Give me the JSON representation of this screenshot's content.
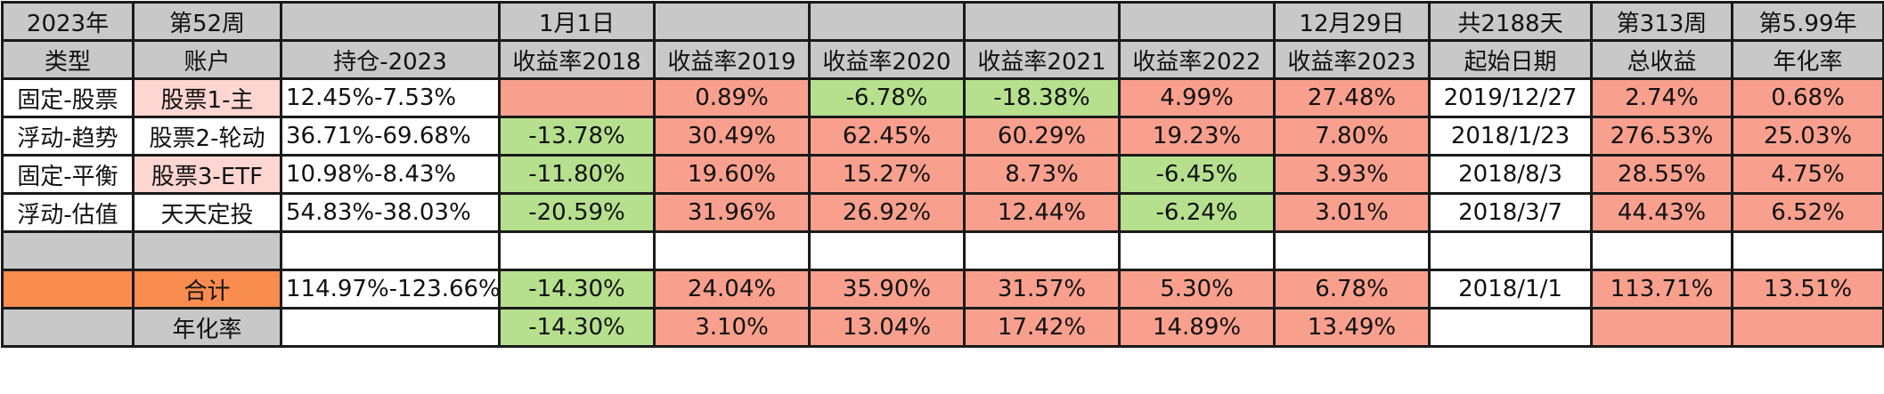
{
  "colors": {
    "header_gray": "#c8c8c8",
    "positive_red": "#f8a08d",
    "negative_green": "#b6e08e",
    "account_pink": "#fdd6d2",
    "total_orange": "#f98c4f",
    "blank_white": "#ffffff"
  },
  "header_row1": [
    "2023年",
    "第52周",
    "",
    "1月1日",
    "",
    "",
    "",
    "",
    "12月29日",
    "共2188天",
    "第313周",
    "第5.99年"
  ],
  "header_row2": [
    "类型",
    "账户",
    "持仓-2023",
    "收益率2018",
    "收益率2019",
    "收益率2020",
    "收益率2021",
    "收益率2022",
    "收益率2023",
    "起始日期",
    "总收益",
    "年化率"
  ],
  "rows": [
    {
      "cells": [
        {
          "text": "固定-股票",
          "style": "white"
        },
        {
          "text": "股票1-主",
          "style": "pink"
        },
        {
          "text": "12.45%-7.53%",
          "style": "white",
          "align": "left"
        },
        {
          "text": "",
          "style": "red"
        },
        {
          "text": "0.89%",
          "style": "red"
        },
        {
          "text": "-6.78%",
          "style": "green"
        },
        {
          "text": "-18.38%",
          "style": "green"
        },
        {
          "text": "4.99%",
          "style": "red"
        },
        {
          "text": "27.48%",
          "style": "red"
        },
        {
          "text": "2019/12/27",
          "style": "white"
        },
        {
          "text": "2.74%",
          "style": "red"
        },
        {
          "text": "0.68%",
          "style": "red"
        }
      ]
    },
    {
      "cells": [
        {
          "text": "浮动-趋势",
          "style": "white"
        },
        {
          "text": "股票2-轮动",
          "style": "white"
        },
        {
          "text": "36.71%-69.68%",
          "style": "white",
          "align": "left"
        },
        {
          "text": "-13.78%",
          "style": "green"
        },
        {
          "text": "30.49%",
          "style": "red"
        },
        {
          "text": "62.45%",
          "style": "red"
        },
        {
          "text": "60.29%",
          "style": "red"
        },
        {
          "text": "19.23%",
          "style": "red"
        },
        {
          "text": "7.80%",
          "style": "red"
        },
        {
          "text": "2018/1/23",
          "style": "white"
        },
        {
          "text": "276.53%",
          "style": "red"
        },
        {
          "text": "25.03%",
          "style": "red"
        }
      ]
    },
    {
      "cells": [
        {
          "text": "固定-平衡",
          "style": "white"
        },
        {
          "text": "股票3-ETF",
          "style": "pink"
        },
        {
          "text": "10.98%-8.43%",
          "style": "white",
          "align": "left"
        },
        {
          "text": "-11.80%",
          "style": "green"
        },
        {
          "text": "19.60%",
          "style": "red"
        },
        {
          "text": "15.27%",
          "style": "red"
        },
        {
          "text": "8.73%",
          "style": "red"
        },
        {
          "text": "-6.45%",
          "style": "green"
        },
        {
          "text": "3.93%",
          "style": "red"
        },
        {
          "text": "2018/8/3",
          "style": "white"
        },
        {
          "text": "28.55%",
          "style": "red"
        },
        {
          "text": "4.75%",
          "style": "red"
        }
      ]
    },
    {
      "cells": [
        {
          "text": "浮动-估值",
          "style": "white"
        },
        {
          "text": "天天定投",
          "style": "white"
        },
        {
          "text": "54.83%-38.03%",
          "style": "white",
          "align": "left"
        },
        {
          "text": "-20.59%",
          "style": "green"
        },
        {
          "text": "31.96%",
          "style": "red"
        },
        {
          "text": "26.92%",
          "style": "red"
        },
        {
          "text": "12.44%",
          "style": "red"
        },
        {
          "text": "-6.24%",
          "style": "green"
        },
        {
          "text": "3.01%",
          "style": "red"
        },
        {
          "text": "2018/3/7",
          "style": "white"
        },
        {
          "text": "44.43%",
          "style": "red"
        },
        {
          "text": "6.52%",
          "style": "red"
        }
      ]
    },
    {
      "cells": [
        {
          "text": "",
          "style": "gray"
        },
        {
          "text": "",
          "style": "gray"
        },
        {
          "text": "",
          "style": "white"
        },
        {
          "text": "",
          "style": "white"
        },
        {
          "text": "",
          "style": "white"
        },
        {
          "text": "",
          "style": "white"
        },
        {
          "text": "",
          "style": "white"
        },
        {
          "text": "",
          "style": "white"
        },
        {
          "text": "",
          "style": "white"
        },
        {
          "text": "",
          "style": "white"
        },
        {
          "text": "",
          "style": "white"
        },
        {
          "text": "",
          "style": "white"
        }
      ]
    },
    {
      "cells": [
        {
          "text": "",
          "style": "orange"
        },
        {
          "text": "合计",
          "style": "orange"
        },
        {
          "text": "114.97%-123.66%",
          "style": "white",
          "align": "left"
        },
        {
          "text": "-14.30%",
          "style": "green"
        },
        {
          "text": "24.04%",
          "style": "red"
        },
        {
          "text": "35.90%",
          "style": "red"
        },
        {
          "text": "31.57%",
          "style": "red"
        },
        {
          "text": "5.30%",
          "style": "red"
        },
        {
          "text": "6.78%",
          "style": "red"
        },
        {
          "text": "2018/1/1",
          "style": "white"
        },
        {
          "text": "113.71%",
          "style": "red"
        },
        {
          "text": "13.51%",
          "style": "red"
        }
      ]
    },
    {
      "cells": [
        {
          "text": "",
          "style": "gray"
        },
        {
          "text": "年化率",
          "style": "gray"
        },
        {
          "text": "",
          "style": "white"
        },
        {
          "text": "-14.30%",
          "style": "green"
        },
        {
          "text": "3.10%",
          "style": "red"
        },
        {
          "text": "13.04%",
          "style": "red"
        },
        {
          "text": "17.42%",
          "style": "red"
        },
        {
          "text": "14.89%",
          "style": "red"
        },
        {
          "text": "13.49%",
          "style": "red"
        },
        {
          "text": "",
          "style": "white"
        },
        {
          "text": "",
          "style": "red"
        },
        {
          "text": "",
          "style": "red"
        }
      ]
    }
  ]
}
